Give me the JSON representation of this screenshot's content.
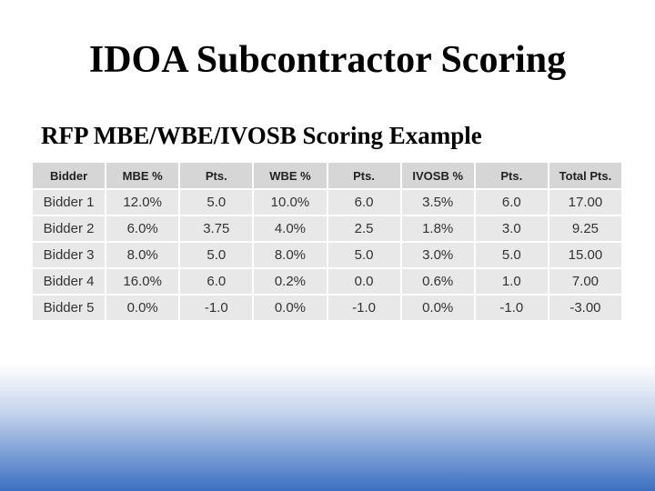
{
  "header": {
    "title": "IDOA Subcontractor Scoring",
    "subtitle": "RFP MBE/WBE/IVOSB Scoring Example"
  },
  "table": {
    "columns": [
      "Bidder",
      "MBE %",
      "Pts.",
      "WBE %",
      "Pts.",
      "IVOSB %",
      "Pts.",
      "Total Pts."
    ],
    "rows": [
      [
        "Bidder 1",
        "12.0%",
        "5.0",
        "10.0%",
        "6.0",
        "3.5%",
        "6.0",
        "17.00"
      ],
      [
        "Bidder 2",
        "6.0%",
        "3.75",
        "4.0%",
        "2.5",
        "1.8%",
        "3.0",
        "9.25"
      ],
      [
        "Bidder 3",
        "8.0%",
        "5.0",
        "8.0%",
        "5.0",
        "3.0%",
        "5.0",
        "15.00"
      ],
      [
        "Bidder 4",
        "16.0%",
        "6.0",
        "0.2%",
        "0.0",
        "0.6%",
        "1.0",
        "7.00"
      ],
      [
        "Bidder 5",
        "0.0%",
        "-1.0",
        "0.0%",
        "-1.0",
        "0.0%",
        "-1.0",
        "-3.00"
      ]
    ]
  }
}
